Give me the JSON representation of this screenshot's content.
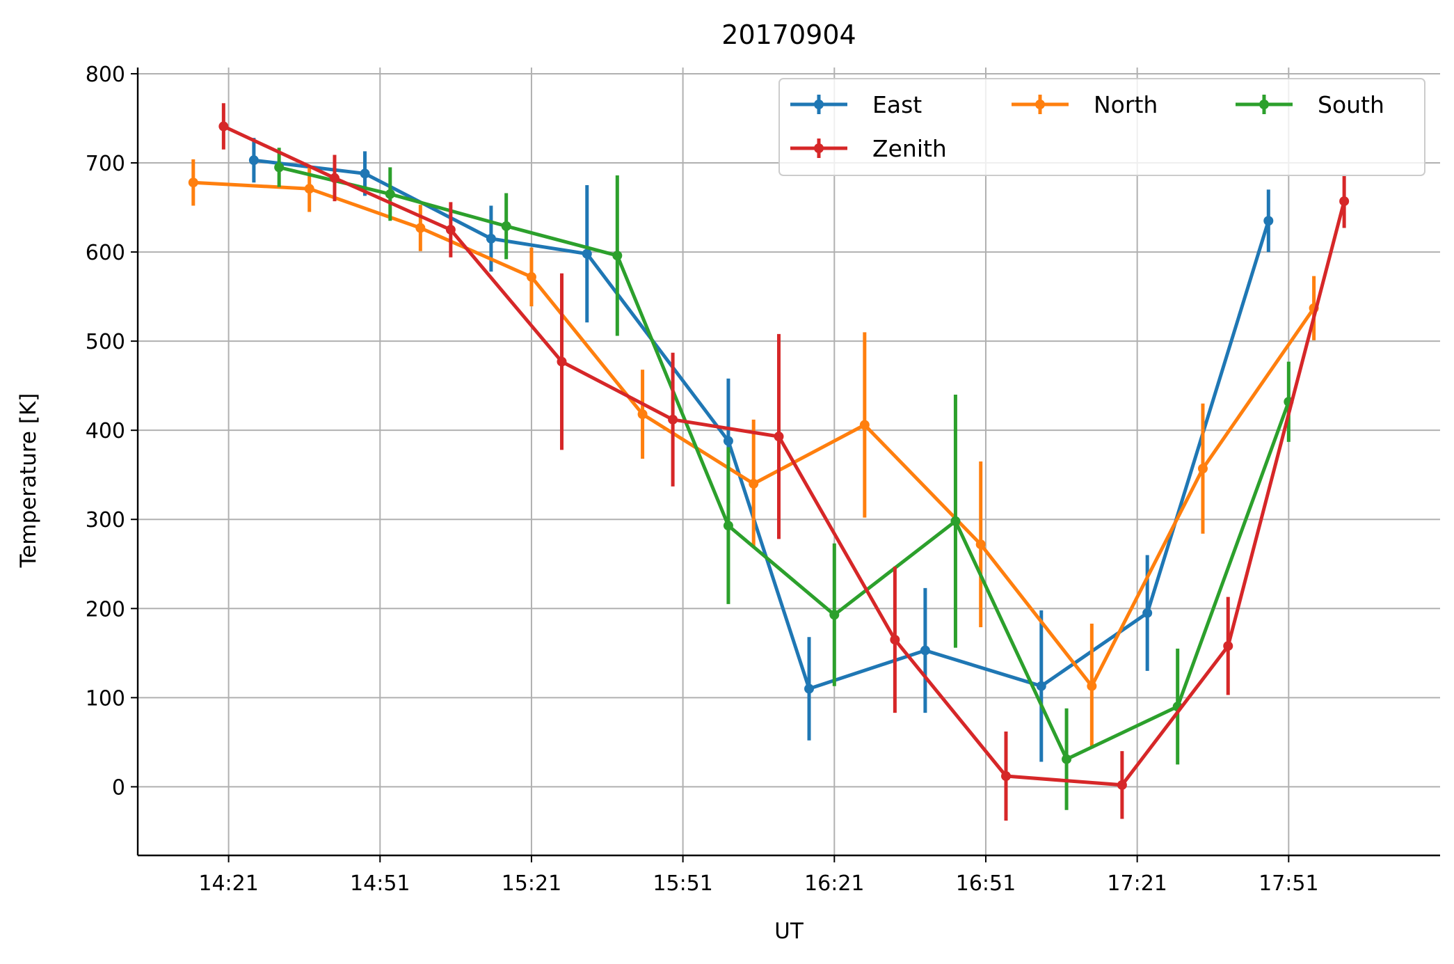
{
  "chart_data": {
    "type": "line",
    "title": "20170904",
    "xlabel": "UT",
    "ylabel": "Temperature [K]",
    "xlim": [
      "14:03",
      "18:21"
    ],
    "ylim": [
      -77,
      807
    ],
    "xticks": [
      "14:21",
      "14:51",
      "15:21",
      "15:51",
      "16:21",
      "16:51",
      "17:21",
      "17:51"
    ],
    "yticks": [
      0,
      100,
      200,
      300,
      400,
      500,
      600,
      700,
      800
    ],
    "grid": true,
    "legend_position": "top-right",
    "series": [
      {
        "name": "East",
        "color": "#1f77b4",
        "points": [
          {
            "t": "14:26",
            "y": 703,
            "err": 25
          },
          {
            "t": "14:48",
            "y": 688,
            "err": 25
          },
          {
            "t": "15:13",
            "y": 615,
            "err": 37
          },
          {
            "t": "15:32",
            "y": 598,
            "err": 77
          },
          {
            "t": "16:00",
            "y": 388,
            "err": 70
          },
          {
            "t": "16:16",
            "y": 110,
            "err": 58
          },
          {
            "t": "16:39",
            "y": 153,
            "err": 70
          },
          {
            "t": "17:02",
            "y": 113,
            "err": 85
          },
          {
            "t": "17:23",
            "y": 195,
            "err": 65
          },
          {
            "t": "17:47",
            "y": 635,
            "err": 35
          }
        ]
      },
      {
        "name": "North",
        "color": "#ff7f0e",
        "points": [
          {
            "t": "14:14",
            "y": 678,
            "err": 26
          },
          {
            "t": "14:37",
            "y": 671,
            "err": 26
          },
          {
            "t": "14:59",
            "y": 627,
            "err": 26
          },
          {
            "t": "15:21",
            "y": 572,
            "err": 33
          },
          {
            "t": "15:43",
            "y": 418,
            "err": 50
          },
          {
            "t": "16:05",
            "y": 340,
            "err": 72
          },
          {
            "t": "16:27",
            "y": 406,
            "err": 104
          },
          {
            "t": "16:50",
            "y": 272,
            "err": 93
          },
          {
            "t": "17:12",
            "y": 113,
            "err": 70
          },
          {
            "t": "17:34",
            "y": 357,
            "err": 73
          },
          {
            "t": "17:56",
            "y": 537,
            "err": 36
          }
        ]
      },
      {
        "name": "South",
        "color": "#2ca02c",
        "points": [
          {
            "t": "14:31",
            "y": 695,
            "err": 22
          },
          {
            "t": "14:53",
            "y": 665,
            "err": 30
          },
          {
            "t": "15:16",
            "y": 629,
            "err": 37
          },
          {
            "t": "15:38",
            "y": 596,
            "err": 90
          },
          {
            "t": "16:00",
            "y": 293,
            "err": 88
          },
          {
            "t": "16:21",
            "y": 193,
            "err": 80
          },
          {
            "t": "16:45",
            "y": 298,
            "err": 142
          },
          {
            "t": "17:07",
            "y": 31,
            "err": 57
          },
          {
            "t": "17:29",
            "y": 90,
            "err": 65
          },
          {
            "t": "17:51",
            "y": 432,
            "err": 45
          }
        ]
      },
      {
        "name": "Zenith",
        "color": "#d62728",
        "points": [
          {
            "t": "14:20",
            "y": 741,
            "err": 26
          },
          {
            "t": "14:42",
            "y": 683,
            "err": 26
          },
          {
            "t": "15:05",
            "y": 625,
            "err": 31
          },
          {
            "t": "15:27",
            "y": 477,
            "err": 99
          },
          {
            "t": "15:49",
            "y": 412,
            "err": 75
          },
          {
            "t": "16:10",
            "y": 393,
            "err": 115
          },
          {
            "t": "16:33",
            "y": 165,
            "err": 82
          },
          {
            "t": "16:55",
            "y": 12,
            "err": 50
          },
          {
            "t": "17:18",
            "y": 2,
            "err": 38
          },
          {
            "t": "17:39",
            "y": 158,
            "err": 55
          },
          {
            "t": "18:02",
            "y": 657,
            "err": 30
          }
        ]
      }
    ]
  }
}
